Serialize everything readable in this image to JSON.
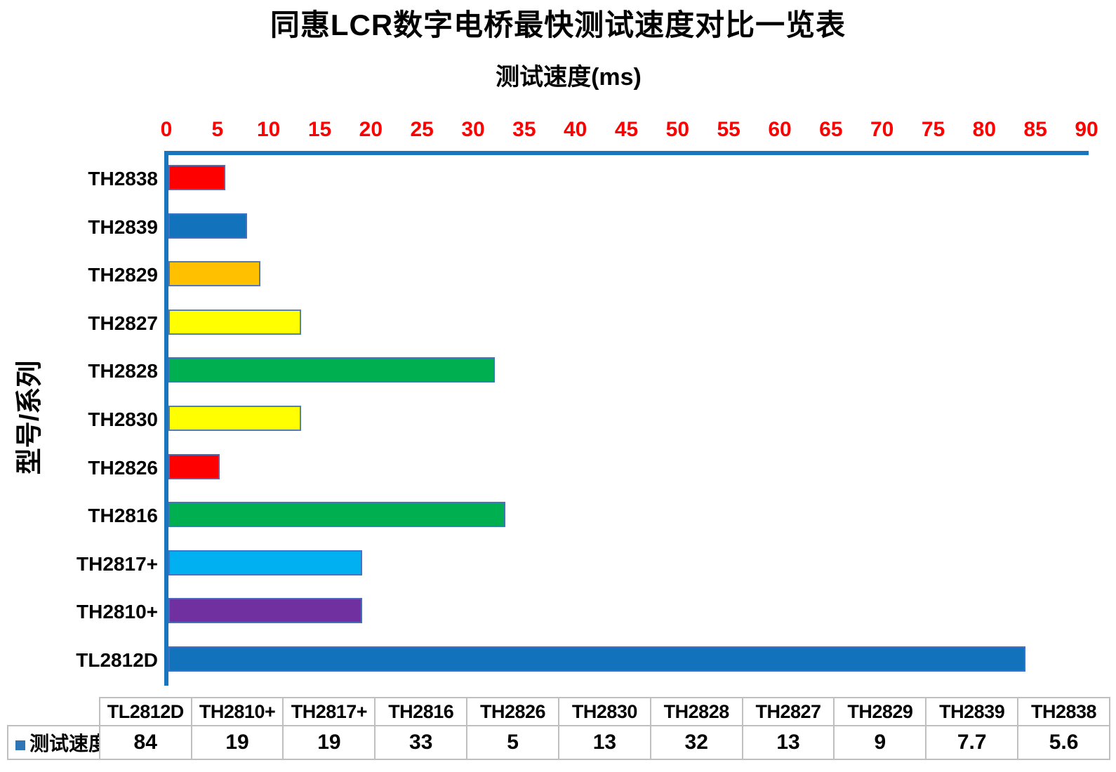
{
  "chart_data": {
    "type": "bar",
    "orientation": "horizontal",
    "title": "同惠LCR数字电桥最快测试速度对比一览表",
    "axis_title": "测试速度(ms)",
    "ylabel": "型号/系列",
    "xlim": [
      0,
      90
    ],
    "xticks": [
      0,
      5,
      10,
      15,
      20,
      25,
      30,
      35,
      40,
      45,
      50,
      55,
      60,
      65,
      70,
      75,
      80,
      85,
      90
    ],
    "tick_color": "#ff0000",
    "axis_color": "#1b75bc",
    "grid": false,
    "categories": [
      "TH2838",
      "TH2839",
      "TH2829",
      "TH2827",
      "TH2828",
      "TH2830",
      "TH2826",
      "TH2816",
      "TH2817+",
      "TH2810+",
      "TL2812D"
    ],
    "values": [
      5.6,
      7.7,
      9,
      13,
      32,
      13,
      5,
      33,
      19,
      19,
      84
    ],
    "bar_colors": [
      "#ff0000",
      "#1272bc",
      "#ffc000",
      "#ffff00",
      "#00b050",
      "#ffff00",
      "#ff0000",
      "#00b050",
      "#00b0f0",
      "#7030a0",
      "#1272bc"
    ],
    "legend": {
      "label": "测试速度(ms)",
      "marker_color": "#2e75b6",
      "position": "bottom-table"
    }
  },
  "table": {
    "row_label": "测试速度(ms)",
    "columns": [
      "TL2812D",
      "TH2810+",
      "TH2817+",
      "TH2816",
      "TH2826",
      "TH2830",
      "TH2828",
      "TH2827",
      "TH2829",
      "TH2839",
      "TH2838"
    ],
    "values": [
      "84",
      "19",
      "19",
      "33",
      "5",
      "13",
      "32",
      "13",
      "9",
      "7.7",
      "5.6"
    ]
  }
}
